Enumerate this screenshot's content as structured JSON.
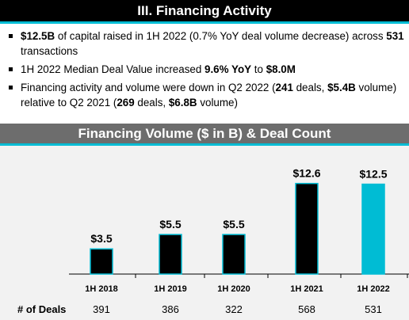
{
  "section_title": "III. Financing Activity",
  "bullets": [
    {
      "segments": [
        {
          "t": "$12.5B",
          "b": true
        },
        {
          "t": " of capital raised in 1H 2022 (0.7% YoY deal volume decrease) across ",
          "b": false
        },
        {
          "t": "531",
          "b": true
        },
        {
          "t": " transactions",
          "b": false
        }
      ]
    },
    {
      "segments": [
        {
          "t": "1H 2022 Median Deal Value increased ",
          "b": false
        },
        {
          "t": "9.6% YoY",
          "b": true
        },
        {
          "t": " to ",
          "b": false
        },
        {
          "t": "$8.0M",
          "b": true
        }
      ]
    },
    {
      "segments": [
        {
          "t": "Financing activity and volume were down in Q2 2022 (",
          "b": false
        },
        {
          "t": "241",
          "b": true
        },
        {
          "t": " deals, ",
          "b": false
        },
        {
          "t": "$5.4B",
          "b": true
        },
        {
          "t": " volume) relative to Q2 2021 (",
          "b": false
        },
        {
          "t": "269",
          "b": true
        },
        {
          "t": " deals, ",
          "b": false
        },
        {
          "t": "$6.8B",
          "b": true
        },
        {
          "t": " volume)",
          "b": false
        }
      ]
    }
  ],
  "colors": {
    "accent": "#00bcd4",
    "bar": "#000000",
    "bar_highlight": "#00bcd4",
    "header_bg": "#6d6d6d",
    "panel_bg": "#f2f2f2"
  },
  "chart_data": {
    "type": "bar",
    "title": "Financing Volume ($ in B) & Deal Count",
    "categories": [
      "1H 2018",
      "1H 2019",
      "1H 2020",
      "1H 2021",
      "1H 2022"
    ],
    "values": [
      3.5,
      5.5,
      5.5,
      12.6,
      12.5
    ],
    "value_labels": [
      "$3.5",
      "$5.5",
      "$5.5",
      "$12.6",
      "$12.5"
    ],
    "highlight_index": 4,
    "deal_count_label": "# of Deals",
    "deal_counts": [
      "391",
      "386",
      "322",
      "568",
      "531"
    ],
    "ylim": [
      0,
      13
    ],
    "grid": false,
    "xlabel": "",
    "ylabel": ""
  }
}
